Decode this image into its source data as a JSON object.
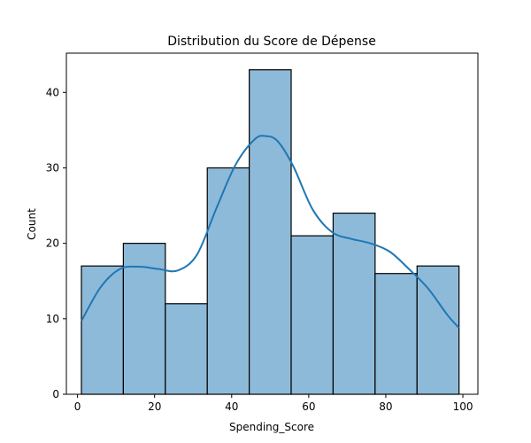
{
  "chart_data": {
    "type": "bar",
    "title": "Distribution du Score de Dépense",
    "xlabel": "Spending_Score",
    "ylabel": "Count",
    "xlim": [
      -2.9,
      103.9
    ],
    "ylim": [
      0,
      45.2
    ],
    "xticks": [
      0,
      20,
      40,
      60,
      80,
      100
    ],
    "yticks": [
      0,
      10,
      20,
      30,
      40
    ],
    "bins": [
      {
        "x0": 1.0,
        "x1": 11.89,
        "count": 17
      },
      {
        "x0": 11.89,
        "x1": 22.78,
        "count": 20
      },
      {
        "x0": 22.78,
        "x1": 33.67,
        "count": 12
      },
      {
        "x0": 33.67,
        "x1": 44.56,
        "count": 30
      },
      {
        "x0": 44.56,
        "x1": 55.44,
        "count": 43
      },
      {
        "x0": 55.44,
        "x1": 66.33,
        "count": 21
      },
      {
        "x0": 66.33,
        "x1": 77.22,
        "count": 24
      },
      {
        "x0": 77.22,
        "x1": 88.11,
        "count": 16
      },
      {
        "x0": 88.11,
        "x1": 99.0,
        "count": 17
      }
    ],
    "kde": {
      "x": [
        1,
        6,
        11,
        16,
        21,
        26,
        31,
        36,
        41,
        46,
        49,
        52,
        56,
        61,
        66,
        71,
        76,
        81,
        86,
        91,
        96,
        99
      ],
      "y": [
        9.7,
        14.2,
        16.6,
        16.9,
        16.6,
        16.4,
        18.5,
        24.6,
        30.4,
        33.8,
        34.2,
        33.5,
        30.2,
        24.5,
        21.5,
        20.6,
        20.0,
        18.9,
        16.6,
        14.0,
        10.5,
        8.8
      ]
    },
    "grid": false,
    "legend": "none",
    "colors": {
      "bar_fill": "#8ebad9",
      "bar_edge": "#000000",
      "kde_line": "#1f77b4"
    }
  }
}
